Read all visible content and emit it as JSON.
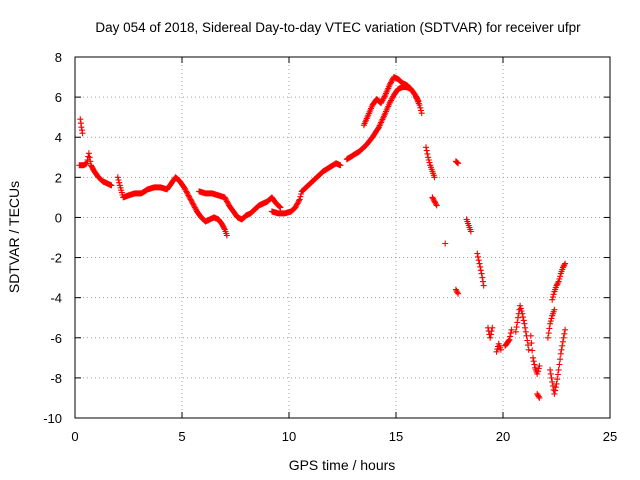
{
  "chart_data": {
    "type": "scatter",
    "title": "Day 054 of 2018, Sidereal Day-to-day VTEC variation (SDTVAR) for receiver ufpr",
    "xlabel": "GPS time / hours",
    "ylabel": "SDTVAR / TECUs",
    "xlim": [
      0,
      25
    ],
    "ylim": [
      -10,
      8
    ],
    "grid": true,
    "marker": "+",
    "color": "#ff0000",
    "xticks": [
      0,
      5,
      10,
      15,
      20,
      25
    ],
    "yticks": [
      -10,
      -8,
      -6,
      -4,
      -2,
      0,
      2,
      4,
      6,
      8
    ],
    "xtick_labels": [
      "0",
      "5",
      "10",
      "15",
      "20",
      "25"
    ],
    "ytick_labels": [
      "-10",
      "-8",
      "-6",
      "-4",
      "-2",
      "0",
      "2",
      "4",
      "6",
      "8"
    ],
    "series": [
      {
        "segments": [
          [
            [
              0.25,
              4.9
            ],
            [
              0.3,
              4.5
            ],
            [
              0.35,
              4.2
            ]
          ],
          [
            [
              0.2,
              2.6
            ],
            [
              0.4,
              2.6
            ],
            [
              0.55,
              2.7
            ],
            [
              0.65,
              3.2
            ],
            [
              0.75,
              2.6
            ],
            [
              0.9,
              2.3
            ],
            [
              1.1,
              2.0
            ],
            [
              1.3,
              1.8
            ],
            [
              1.5,
              1.7
            ],
            [
              1.7,
              1.6
            ]
          ],
          [
            [
              2.0,
              2.0
            ],
            [
              2.1,
              1.6
            ],
            [
              2.25,
              1.0
            ],
            [
              2.5,
              1.1
            ],
            [
              2.8,
              1.2
            ],
            [
              3.1,
              1.2
            ],
            [
              3.4,
              1.4
            ],
            [
              3.7,
              1.5
            ],
            [
              4.0,
              1.5
            ],
            [
              4.3,
              1.4
            ],
            [
              4.5,
              1.7
            ],
            [
              4.7,
              2.0
            ],
            [
              4.9,
              1.8
            ],
            [
              5.1,
              1.5
            ],
            [
              5.3,
              1.1
            ],
            [
              5.5,
              0.7
            ],
            [
              5.7,
              0.3
            ],
            [
              5.9,
              0.0
            ],
            [
              6.1,
              -0.2
            ],
            [
              6.3,
              -0.1
            ],
            [
              6.5,
              0.0
            ],
            [
              6.7,
              -0.1
            ],
            [
              6.85,
              -0.3
            ],
            [
              7.0,
              -0.6
            ],
            [
              7.1,
              -0.9
            ]
          ],
          [
            [
              5.8,
              1.3
            ],
            [
              6.1,
              1.2
            ],
            [
              6.4,
              1.2
            ],
            [
              6.7,
              1.1
            ],
            [
              7.0,
              1.0
            ],
            [
              7.2,
              0.6
            ],
            [
              7.4,
              0.3
            ],
            [
              7.6,
              0.0
            ],
            [
              7.8,
              -0.1
            ],
            [
              8.0,
              0.1
            ],
            [
              8.2,
              0.2
            ],
            [
              8.4,
              0.4
            ],
            [
              8.6,
              0.6
            ],
            [
              8.8,
              0.7
            ],
            [
              9.0,
              0.8
            ],
            [
              9.2,
              1.0
            ],
            [
              9.4,
              0.7
            ],
            [
              9.6,
              0.5
            ]
          ],
          [
            [
              9.2,
              0.3
            ],
            [
              9.5,
              0.2
            ],
            [
              9.8,
              0.2
            ],
            [
              10.1,
              0.3
            ],
            [
              10.3,
              0.5
            ],
            [
              10.5,
              0.9
            ],
            [
              10.6,
              1.3
            ],
            [
              10.8,
              1.5
            ],
            [
              11.0,
              1.7
            ],
            [
              11.3,
              2.0
            ],
            [
              11.6,
              2.3
            ],
            [
              11.9,
              2.5
            ],
            [
              12.2,
              2.7
            ],
            [
              12.4,
              2.6
            ]
          ],
          [
            [
              12.7,
              2.9
            ],
            [
              13.0,
              3.1
            ],
            [
              13.3,
              3.3
            ],
            [
              13.6,
              3.6
            ],
            [
              13.9,
              4.0
            ],
            [
              14.2,
              4.5
            ],
            [
              14.5,
              5.2
            ],
            [
              14.7,
              5.7
            ],
            [
              14.9,
              6.1
            ],
            [
              15.1,
              6.4
            ],
            [
              15.3,
              6.5
            ],
            [
              15.5,
              6.5
            ],
            [
              15.7,
              6.4
            ],
            [
              15.9,
              6.1
            ],
            [
              16.1,
              5.6
            ],
            [
              16.2,
              5.2
            ]
          ],
          [
            [
              13.5,
              4.6
            ],
            [
              13.7,
              5.1
            ],
            [
              13.9,
              5.6
            ],
            [
              14.1,
              5.9
            ],
            [
              14.3,
              5.7
            ],
            [
              14.5,
              6.1
            ],
            [
              14.7,
              6.6
            ],
            [
              14.9,
              7.0
            ],
            [
              15.1,
              6.9
            ],
            [
              15.3,
              6.7
            ],
            [
              15.5,
              6.6
            ],
            [
              15.7,
              6.4
            ],
            [
              15.9,
              6.1
            ],
            [
              16.05,
              5.8
            ]
          ],
          [
            [
              16.4,
              3.5
            ],
            [
              16.5,
              3.0
            ],
            [
              16.6,
              2.6
            ],
            [
              16.7,
              2.3
            ],
            [
              16.8,
              2.0
            ]
          ],
          [
            [
              16.7,
              1.0
            ],
            [
              16.8,
              0.8
            ],
            [
              16.9,
              0.6
            ]
          ],
          [
            [
              17.3,
              -1.3
            ]
          ],
          [
            [
              17.8,
              2.8
            ],
            [
              17.9,
              2.7
            ]
          ],
          [
            [
              17.8,
              -3.6
            ],
            [
              17.9,
              -3.8
            ]
          ],
          [
            [
              18.3,
              -0.1
            ],
            [
              18.4,
              -0.4
            ],
            [
              18.5,
              -0.7
            ]
          ],
          [
            [
              18.8,
              -1.8
            ],
            [
              18.9,
              -2.3
            ],
            [
              19.0,
              -2.8
            ],
            [
              19.1,
              -3.4
            ]
          ],
          [
            [
              19.3,
              -5.5
            ],
            [
              19.4,
              -6.0
            ],
            [
              19.5,
              -5.5
            ]
          ],
          [
            [
              19.7,
              -6.7
            ],
            [
              19.8,
              -6.3
            ],
            [
              19.9,
              -6.6
            ]
          ],
          [
            [
              20.1,
              -6.4
            ],
            [
              20.3,
              -6.1
            ],
            [
              20.4,
              -5.6
            ]
          ],
          [
            [
              20.6,
              -5.7
            ],
            [
              20.7,
              -5.0
            ],
            [
              20.8,
              -4.4
            ],
            [
              20.9,
              -4.8
            ],
            [
              21.0,
              -5.3
            ],
            [
              21.1,
              -5.9
            ],
            [
              21.2,
              -6.6
            ]
          ],
          [
            [
              21.3,
              -5.9
            ],
            [
              21.4,
              -7.0
            ],
            [
              21.5,
              -7.5
            ],
            [
              21.6,
              -7.8
            ],
            [
              21.7,
              -7.4
            ]
          ],
          [
            [
              21.6,
              -8.8
            ],
            [
              21.7,
              -9.0
            ]
          ],
          [
            [
              22.1,
              -6.0
            ],
            [
              22.2,
              -5.3
            ],
            [
              22.3,
              -4.9
            ],
            [
              22.4,
              -4.6
            ]
          ],
          [
            [
              22.2,
              -7.6
            ],
            [
              22.3,
              -8.2
            ],
            [
              22.4,
              -8.8
            ],
            [
              22.5,
              -8.3
            ],
            [
              22.6,
              -7.6
            ],
            [
              22.7,
              -6.8
            ],
            [
              22.8,
              -6.2
            ],
            [
              22.9,
              -5.6
            ]
          ],
          [
            [
              22.3,
              -4.1
            ],
            [
              22.4,
              -3.7
            ],
            [
              22.5,
              -3.4
            ],
            [
              22.6,
              -3.2
            ],
            [
              22.7,
              -2.8
            ],
            [
              22.8,
              -2.5
            ],
            [
              22.9,
              -2.3
            ]
          ]
        ]
      }
    ]
  }
}
